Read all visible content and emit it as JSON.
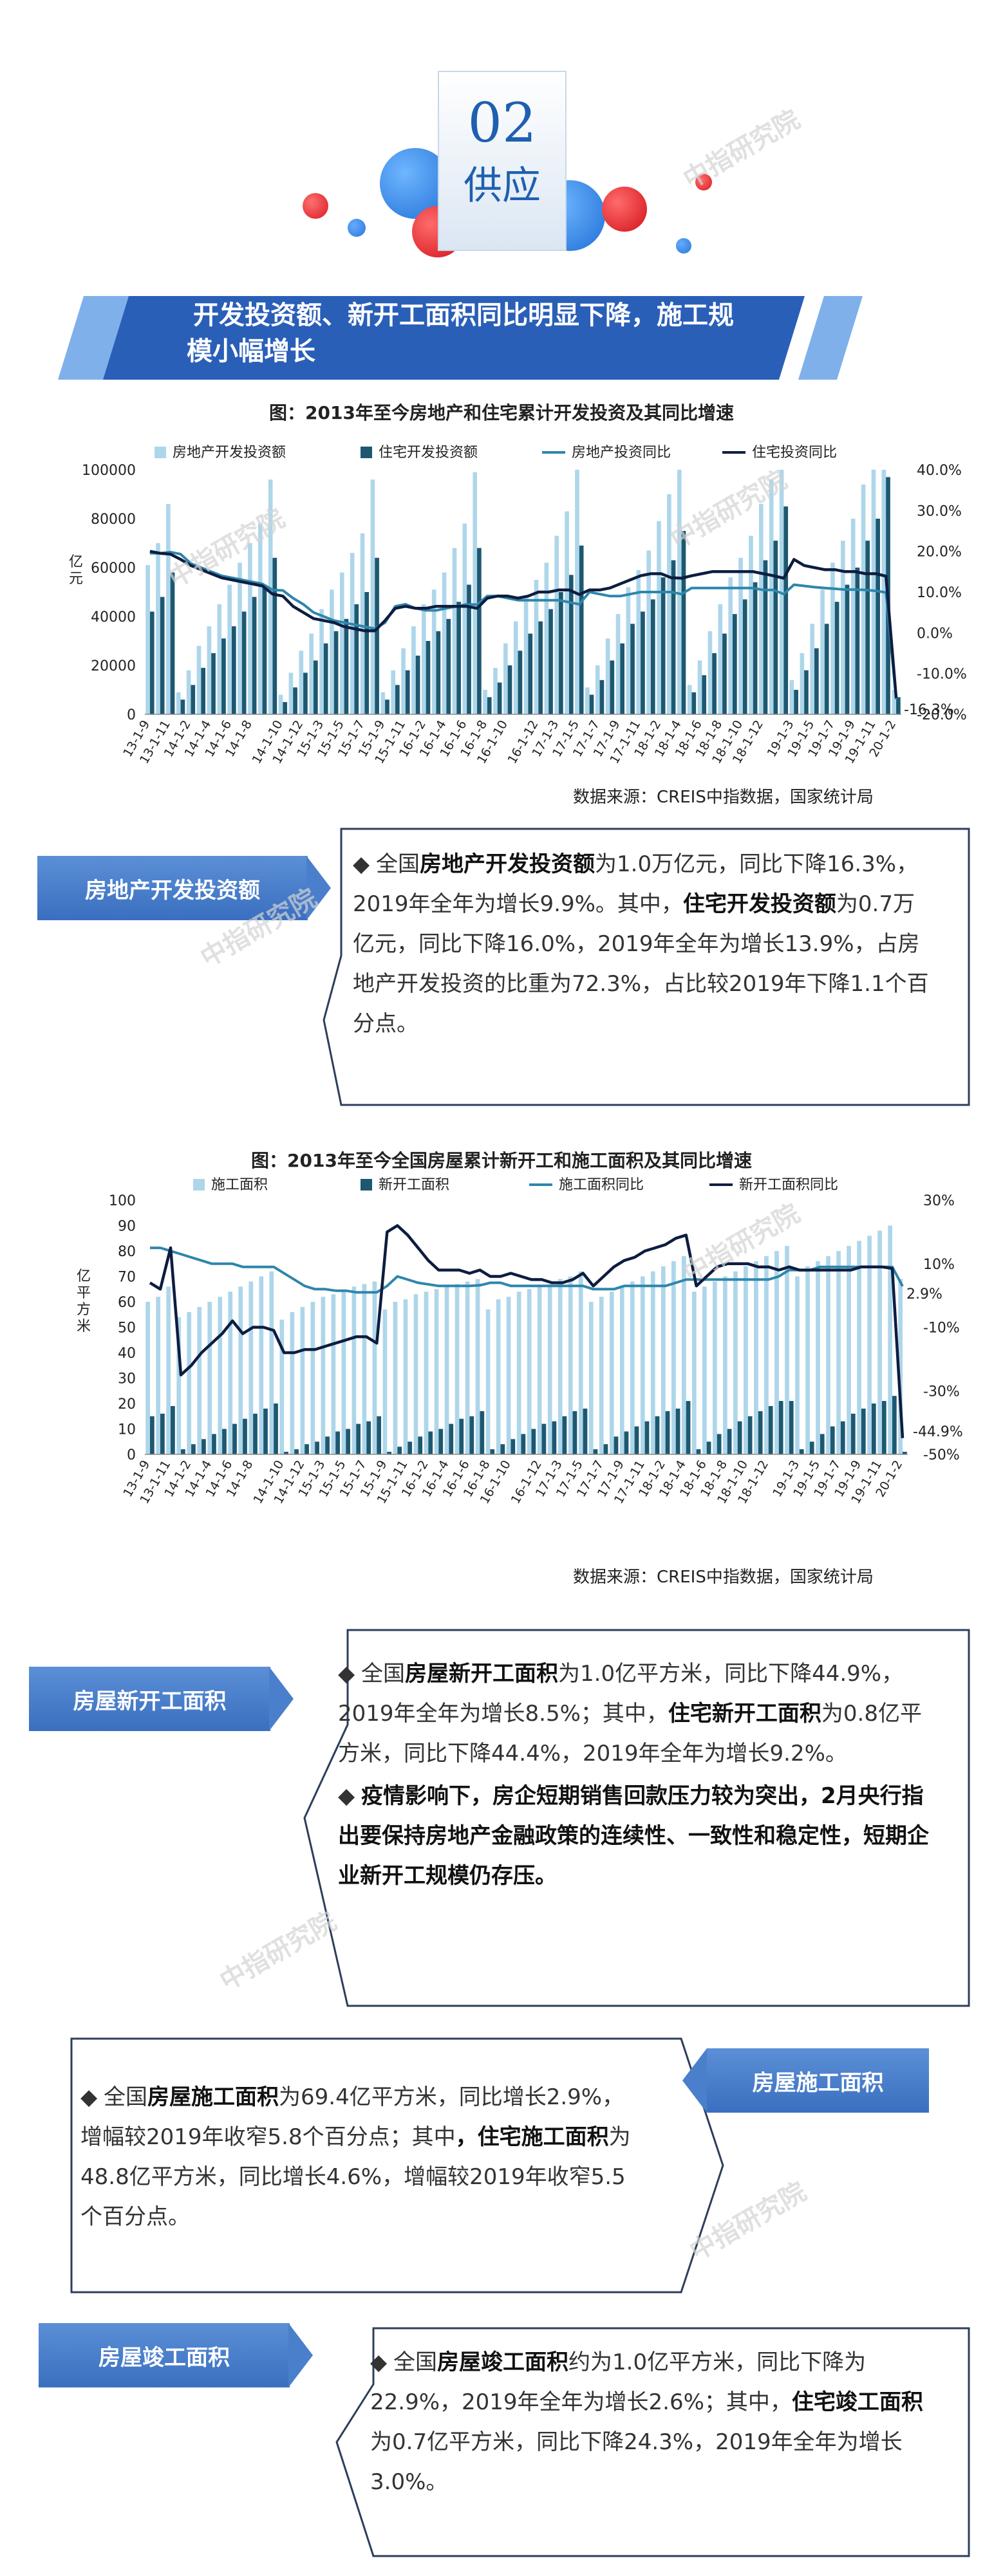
{
  "header": {
    "section_number": "02",
    "section_name": "供应"
  },
  "banner": {
    "title_line1": "开发投资额、新开工面积同比明显下降，施工规",
    "title_line2": "模小幅增长"
  },
  "watermark": "中指研究院",
  "colors": {
    "bar_light": "#aed6ea",
    "bar_dark": "#1d5870",
    "line_teal": "#2e86ab",
    "line_navy": "#0d1d40",
    "tag_blue": "#4a7fcb",
    "banner_blue": "#2a5fb8"
  },
  "chart_data": [
    {
      "type": "bar",
      "title": "图：2013年至今房地产和住宅累计开发投资及其同比增速",
      "ylabel": "亿元",
      "ylim": [
        0,
        100000
      ],
      "y2lim": [
        -20,
        40
      ],
      "yticks": [
        "100000",
        "80000",
        "60000",
        "40000",
        "20000",
        "0"
      ],
      "y2ticks": [
        "40.0%",
        "30.0%",
        "20.0%",
        "10.0%",
        "0.0%",
        "-10.0%",
        "-20.0%"
      ],
      "xticks": [
        "13-1-9",
        "13-1-11",
        "14-1-2",
        "14-1-4",
        "14-1-6",
        "14-1-8",
        "14-1-10",
        "14-1-12",
        "15-1-3",
        "15-1-5",
        "15-1-7",
        "15-1-9",
        "15-1-11",
        "16-1-2",
        "16-1-4",
        "16-1-6",
        "16-1-8",
        "16-1-10",
        "16-1-12",
        "17-1-3",
        "17-1-5",
        "17-1-7",
        "17-1-9",
        "17-1-11",
        "18-1-2",
        "18-1-4",
        "18-1-6",
        "18-1-8",
        "18-1-10",
        "18-1-12",
        "19-1-3",
        "19-1-5",
        "19-1-7",
        "19-1-9",
        "19-1-11",
        "20-1-2"
      ],
      "legend": [
        "房地产开发投资额",
        "住宅开发投资额",
        "房地产投资同比",
        "住宅投资同比"
      ],
      "end_label": "-16.3%",
      "series": [
        {
          "name": "房地产开发投资额",
          "values": [
            61000,
            70000,
            86000,
            9000,
            18000,
            28000,
            36000,
            45000,
            53000,
            62000,
            70000,
            78000,
            96000,
            8000,
            17000,
            26000,
            33000,
            43000,
            51000,
            58000,
            66000,
            74000,
            96000,
            9000,
            18000,
            27000,
            36000,
            45000,
            51000,
            58000,
            68000,
            78000,
            99000,
            10000,
            19000,
            29000,
            38000,
            48000,
            55000,
            62000,
            73000,
            83000,
            100000,
            11000,
            20000,
            31000,
            41000,
            52000,
            59000,
            67000,
            79000,
            90000,
            100000,
            12000,
            22000,
            34000,
            45000,
            56000,
            64000,
            73000,
            86000,
            96000,
            100000,
            14000,
            25000,
            37000,
            51000,
            62000,
            71000,
            80000,
            94000,
            100000,
            100000,
            10000
          ]
        },
        {
          "name": "住宅开发投资额",
          "values": [
            42000,
            48000,
            58000,
            6000,
            12000,
            19000,
            25000,
            31000,
            36000,
            42000,
            48000,
            53000,
            64000,
            5000,
            11000,
            17000,
            22000,
            29000,
            34000,
            39000,
            45000,
            50000,
            64000,
            6000,
            12000,
            18000,
            24000,
            30000,
            34000,
            39000,
            46000,
            53000,
            68000,
            7000,
            13000,
            20000,
            26000,
            33000,
            38000,
            43000,
            50000,
            57000,
            69000,
            8000,
            14000,
            22000,
            29000,
            37000,
            42000,
            47000,
            56000,
            63000,
            75000,
            9000,
            16000,
            25000,
            33000,
            41000,
            47000,
            54000,
            63000,
            71000,
            85000,
            10000,
            18000,
            27000,
            37000,
            46000,
            53000,
            60000,
            71000,
            80000,
            97000,
            7000
          ]
        },
        {
          "name": "房地产投资同比",
          "values": [
            19.5,
            19.5,
            19.8,
            19.3,
            17.0,
            16.0,
            15.0,
            14.0,
            13.5,
            13.0,
            12.5,
            12.0,
            10.5,
            10.4,
            8.5,
            7.0,
            5.0,
            4.0,
            3.0,
            2.5,
            2.0,
            1.5,
            1.0,
            2.5,
            6.5,
            7.0,
            6.0,
            5.5,
            5.5,
            6.0,
            6.5,
            7.0,
            6.9,
            9.0,
            9.0,
            8.5,
            8.0,
            8.0,
            8.0,
            8.0,
            8.0,
            7.5,
            7.0,
            10.0,
            9.5,
            9.0,
            9.0,
            9.5,
            10.0,
            10.0,
            10.0,
            10.0,
            9.5,
            11.0,
            11.0,
            11.0,
            11.0,
            11.0,
            11.0,
            11.0,
            10.5,
            10.5,
            9.5,
            11.8,
            11.5,
            11.2,
            11.0,
            10.8,
            10.6,
            10.6,
            10.5,
            10.3,
            9.9,
            -16.3
          ]
        },
        {
          "name": "住宅投资同比",
          "values": [
            20.0,
            19.5,
            19.3,
            18.0,
            16.5,
            15.5,
            14.5,
            13.5,
            13.0,
            12.5,
            12.0,
            11.5,
            9.5,
            9.0,
            6.5,
            5.0,
            3.5,
            3.0,
            2.5,
            1.5,
            1.0,
            0.5,
            0.5,
            3.0,
            6.0,
            6.5,
            6.0,
            6.0,
            6.5,
            6.5,
            6.5,
            6.5,
            6.0,
            8.5,
            9.0,
            9.0,
            8.5,
            9.0,
            10.0,
            10.0,
            10.5,
            10.5,
            9.4,
            10.5,
            10.5,
            11.0,
            12.0,
            13.0,
            14.0,
            14.5,
            14.5,
            13.5,
            13.4,
            14.0,
            14.5,
            15.0,
            15.0,
            15.0,
            15.0,
            15.0,
            14.5,
            14.0,
            13.4,
            18.0,
            16.5,
            16.0,
            15.5,
            15.5,
            15.0,
            15.0,
            14.5,
            14.5,
            13.9,
            -16.0
          ]
        }
      ],
      "source": "数据来源：CREIS中指数据，国家统计局"
    },
    {
      "type": "bar",
      "title": "图：2013年至今全国房屋累计新开工和施工面积及其同比增速",
      "ylabel": "亿平方米",
      "ylim": [
        0,
        100
      ],
      "y2lim": [
        -50,
        30
      ],
      "yticks": [
        "100",
        "90",
        "80",
        "70",
        "60",
        "50",
        "40",
        "30",
        "20",
        "10",
        "0"
      ],
      "y2ticks": [
        "30%",
        "10%",
        "-10%",
        "-30%",
        "-50%"
      ],
      "xticks": [
        "13-1-9",
        "13-1-11",
        "14-1-2",
        "14-1-4",
        "14-1-6",
        "14-1-8",
        "14-1-10",
        "14-1-12",
        "15-1-3",
        "15-1-5",
        "15-1-7",
        "15-1-9",
        "15-1-11",
        "16-1-2",
        "16-1-4",
        "16-1-6",
        "16-1-8",
        "16-1-10",
        "16-1-12",
        "17-1-3",
        "17-1-5",
        "17-1-7",
        "17-1-9",
        "17-1-11",
        "18-1-2",
        "18-1-4",
        "18-1-6",
        "18-1-8",
        "18-1-10",
        "18-1-12",
        "19-1-3",
        "19-1-5",
        "19-1-7",
        "19-1-9",
        "19-1-11",
        "20-1-2"
      ],
      "legend": [
        "施工面积",
        "新开工面积",
        "施工面积同比",
        "新开工面积同比"
      ],
      "end_labels": [
        "2.9%",
        "-44.9%"
      ],
      "series": [
        {
          "name": "施工面积",
          "values": [
            60,
            62,
            66,
            54,
            56,
            58,
            60,
            62,
            64,
            66,
            68,
            70,
            72,
            53,
            56,
            58,
            60,
            62,
            63,
            64,
            66,
            67,
            68,
            57,
            60,
            61,
            63,
            64,
            65,
            66,
            67,
            68,
            69,
            57,
            61,
            62,
            64,
            65,
            66,
            67,
            69,
            70,
            72,
            60,
            62,
            64,
            66,
            68,
            70,
            72,
            74,
            76,
            78,
            64,
            66,
            68,
            70,
            72,
            74,
            76,
            78,
            80,
            82,
            70,
            74,
            76,
            78,
            80,
            82,
            84,
            86,
            88,
            90,
            69
          ]
        },
        {
          "name": "新开工面积",
          "values": [
            15,
            16,
            19,
            2,
            4,
            6,
            8,
            10,
            12,
            14,
            16,
            18,
            20,
            1,
            2,
            4,
            5,
            7,
            9,
            10,
            12,
            13,
            15,
            1,
            3,
            5,
            7,
            9,
            10,
            12,
            14,
            15,
            17,
            2,
            4,
            6,
            8,
            10,
            12,
            13,
            15,
            17,
            18,
            2,
            4,
            7,
            9,
            11,
            13,
            15,
            17,
            18,
            21,
            2,
            5,
            8,
            10,
            13,
            15,
            17,
            19,
            21,
            21,
            2,
            5,
            8,
            11,
            13,
            16,
            18,
            20,
            21,
            23,
            1
          ]
        },
        {
          "name": "施工面积同比",
          "values": [
            15,
            15,
            14,
            13,
            12,
            11,
            10,
            10,
            10,
            9,
            9,
            9,
            9,
            7,
            5,
            3,
            2,
            2,
            1.5,
            1.5,
            1,
            1,
            1,
            3,
            6,
            5,
            4,
            3.5,
            3,
            3,
            3,
            3,
            3.2,
            4,
            4,
            3,
            3,
            3,
            3,
            3,
            3,
            3,
            3,
            2,
            2,
            2,
            3,
            3,
            3,
            3,
            3,
            4,
            5,
            5,
            5,
            5,
            5,
            5,
            5,
            5,
            5,
            6,
            8,
            8,
            8,
            9,
            9,
            9,
            9,
            9,
            9,
            9,
            9,
            2.9
          ]
        },
        {
          "name": "新开工面积同比",
          "values": [
            4,
            2,
            15,
            -25,
            -22,
            -18,
            -15,
            -12,
            -8,
            -12,
            -10,
            -10,
            -11,
            -18,
            -18,
            -17,
            -17,
            -16,
            -15,
            -14,
            -13,
            -13,
            -15,
            20,
            22,
            19,
            15,
            11,
            8,
            8,
            8,
            7,
            8,
            6,
            6,
            7,
            6,
            5,
            5,
            4,
            4,
            5,
            7,
            3,
            6,
            9,
            11,
            12,
            14,
            15,
            16,
            18,
            19,
            3,
            6,
            9,
            10,
            10,
            10,
            9,
            9,
            8,
            9,
            8,
            8,
            8,
            8,
            8,
            8,
            9,
            9,
            9,
            8.5,
            -44.9
          ]
        }
      ],
      "source": "数据来源：CREIS中指数据，国家统计局"
    }
  ],
  "sections": {
    "invest": {
      "tag": "房地产开发投资额",
      "p1_a": "全国",
      "p1_b": "房地产开发投资额",
      "p1_c": "为1.0万亿元，同比下降16.3%，2019年全年为增长9.9%。其中，",
      "p1_d": "住宅开发投资额",
      "p1_e": "为0.7万亿元，同比下降16.0%，2019年全年为增长13.9%，占房地产开发投资的比重为72.3%，占比较2019年下降1.1个百分点。"
    },
    "newstart": {
      "tag": "房屋新开工面积",
      "p1_a": "全国",
      "p1_b": "房屋新开工面积",
      "p1_c": "为1.0亿平方米，同比下降44.9%，2019年全年为增长8.5%；其中，",
      "p1_d": "住宅新开工面积",
      "p1_e": "为0.8亿平方米，同比下降44.4%，2019年全年为增长9.2%。",
      "p2": "疫情影响下，房企短期销售回款压力较为突出，2月央行指出要保持房地产金融政策的连续性、一致性和稳定性，短期企业新开工规模仍存压。"
    },
    "construction": {
      "tag": "房屋施工面积",
      "p1_a": "全国",
      "p1_b": "房屋施工面积",
      "p1_c": "为69.4亿平方米，同比增长2.9%，增幅较2019年收窄5.8个百分点；其中",
      "p1_d": "，住宅施工面积",
      "p1_e": "为48.8亿平方米，同比增长4.6%，增幅较2019年收窄5.5个百分点。"
    },
    "completion": {
      "tag": "房屋竣工面积",
      "p1_a": "全国",
      "p1_b": "房屋竣工面积",
      "p1_c": "约为1.0亿平方米，同比下降为22.9%，2019年全年为增长2.6%；其中，",
      "p1_d": "住宅竣工面积",
      "p1_e": "为0.7亿平方米，同比下降24.3%，2019年全年为增长3.0%。"
    }
  }
}
